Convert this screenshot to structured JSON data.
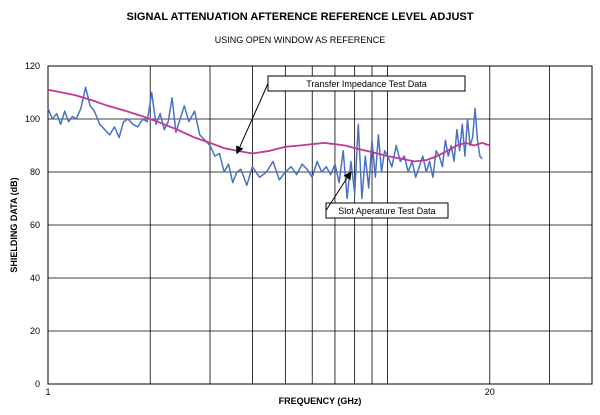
{
  "chart_data": {
    "type": "line",
    "title": "SIGNAL ATTENUATION AFTERENCE REFERENCE LEVEL ADJUST",
    "subtitle": "USING OPEN WINDOW  AS REFERENCE",
    "xlabel": "FREQUENCY (GHz)",
    "ylabel": "SHIELDING DATA (dB)",
    "xscale": "log",
    "xlim": [
      1,
      40
    ],
    "ylim": [
      0,
      120
    ],
    "grid": true,
    "y_ticks": [
      0,
      20,
      40,
      60,
      80,
      100,
      120
    ],
    "x_tick_labels": [
      {
        "value": 1,
        "label": "1"
      },
      {
        "value": 20,
        "label": "20"
      }
    ],
    "colors": {
      "slot": "#4a72c4",
      "transfer": "#c0399a",
      "grid": "#000000"
    },
    "series": [
      {
        "name": "Slot Aperature Test Data",
        "color_key": "slot",
        "x": [
          1.0,
          1.03,
          1.06,
          1.09,
          1.12,
          1.15,
          1.18,
          1.21,
          1.25,
          1.29,
          1.33,
          1.37,
          1.42,
          1.47,
          1.52,
          1.57,
          1.62,
          1.67,
          1.72,
          1.78,
          1.84,
          1.9,
          1.96,
          2.02,
          2.08,
          2.14,
          2.2,
          2.26,
          2.32,
          2.38,
          2.45,
          2.52,
          2.6,
          2.7,
          2.8,
          2.9,
          3.0,
          3.1,
          3.2,
          3.3,
          3.4,
          3.5,
          3.6,
          3.7,
          3.85,
          4.0,
          4.2,
          4.4,
          4.6,
          4.8,
          5.0,
          5.2,
          5.4,
          5.6,
          5.8,
          6.0,
          6.2,
          6.4,
          6.6,
          6.8,
          7.0,
          7.2,
          7.4,
          7.6,
          7.8,
          8.0,
          8.2,
          8.4,
          8.6,
          8.8,
          9.0,
          9.2,
          9.4,
          9.6,
          9.8,
          10.0,
          10.3,
          10.6,
          10.9,
          11.2,
          11.5,
          11.8,
          12.1,
          12.4,
          12.7,
          13.0,
          13.3,
          13.6,
          13.9,
          14.2,
          14.5,
          14.8,
          15.1,
          15.4,
          15.7,
          16.0,
          16.3,
          16.6,
          16.9,
          17.2,
          17.5,
          17.8,
          18.1,
          18.4,
          18.7,
          19.0
        ],
        "y": [
          104,
          100,
          102,
          98,
          103,
          99,
          101,
          100,
          104,
          112,
          105,
          103,
          98,
          96,
          94,
          97,
          93,
          99,
          100,
          98,
          97,
          100,
          99,
          110,
          98,
          102,
          96,
          99,
          108,
          95,
          100,
          105,
          99,
          103,
          94,
          92,
          90,
          86,
          87,
          80,
          83,
          76,
          80,
          81,
          75,
          82,
          78,
          80,
          84,
          77,
          80,
          82,
          79,
          83,
          81,
          78,
          84,
          80,
          82,
          79,
          83,
          76,
          88,
          70,
          84,
          72,
          98,
          70,
          86,
          74,
          92,
          78,
          94,
          80,
          88,
          86,
          82,
          90,
          84,
          86,
          80,
          84,
          78,
          82,
          86,
          80,
          84,
          78,
          88,
          86,
          82,
          92,
          86,
          90,
          84,
          96,
          88,
          98,
          86,
          100,
          90,
          93,
          104,
          92,
          86,
          85
        ]
      },
      {
        "name": "Transfer Impedance Test Data",
        "color_key": "transfer",
        "x": [
          1.0,
          1.1,
          1.2,
          1.35,
          1.5,
          1.7,
          1.9,
          2.1,
          2.4,
          2.7,
          3.0,
          3.3,
          3.6,
          4.0,
          4.5,
          5.0,
          5.5,
          6.0,
          6.5,
          7.0,
          7.5,
          8.0,
          9.0,
          10.0,
          11.0,
          12.0,
          13.0,
          14.0,
          15.0,
          16.0,
          17.0,
          18.0,
          19.0,
          20.0
        ],
        "y": [
          111,
          110,
          109,
          107,
          105,
          103,
          101,
          99,
          96,
          93,
          91,
          89,
          88,
          87,
          88,
          89.5,
          90,
          90.5,
          91,
          90.5,
          90,
          89,
          87.5,
          86,
          85,
          84,
          84.5,
          86,
          88,
          90,
          91,
          90,
          91,
          90
        ]
      }
    ],
    "annotations": [
      {
        "text": "Transfer Impedance Test Data",
        "target_x": 3.6,
        "target_y": 87
      },
      {
        "text": "Slot Aperature Test Data",
        "target_x": 7.8,
        "target_y": 80
      }
    ]
  }
}
